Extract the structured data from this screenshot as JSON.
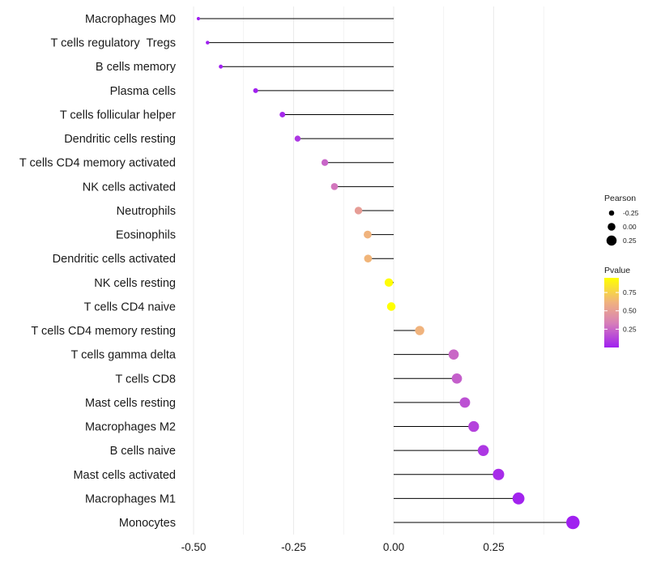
{
  "chart_data": {
    "type": "lollipop",
    "title": "",
    "xlabel": "",
    "ylabel": "",
    "xlim": [
      -0.5,
      0.45
    ],
    "x_ticks": [
      -0.5,
      -0.25,
      0.0,
      0.25
    ],
    "x_tick_labels": [
      "-0.50",
      "-0.25",
      "0.00",
      "0.25"
    ],
    "grid": "vertical",
    "points": [
      {
        "label": "Macrophages M0",
        "pearson": -0.488,
        "pvalue": 1e-06
      },
      {
        "label": "T cells regulatory  Tregs",
        "pearson": -0.465,
        "pvalue": 1e-05
      },
      {
        "label": "B cells memory",
        "pearson": -0.432,
        "pvalue": 0.0001
      },
      {
        "label": "Plasma cells",
        "pearson": -0.345,
        "pvalue": 0.005
      },
      {
        "label": "T cells follicular helper",
        "pearson": -0.278,
        "pvalue": 0.03
      },
      {
        "label": "Dendritic cells resting",
        "pearson": -0.24,
        "pvalue": 0.08
      },
      {
        "label": "T cells CD4 memory activated",
        "pearson": -0.172,
        "pvalue": 0.24
      },
      {
        "label": "NK cells activated",
        "pearson": -0.148,
        "pvalue": 0.3
      },
      {
        "label": "Neutrophils",
        "pearson": -0.088,
        "pvalue": 0.5
      },
      {
        "label": "Eosinophils",
        "pearson": -0.065,
        "pvalue": 0.62
      },
      {
        "label": "Dendritic cells activated",
        "pearson": -0.064,
        "pvalue": 0.63
      },
      {
        "label": "NK cells resting",
        "pearson": -0.012,
        "pvalue": 0.94
      },
      {
        "label": "T cells CD4 naive",
        "pearson": -0.006,
        "pvalue": 0.97
      },
      {
        "label": "T cells CD4 memory resting",
        "pearson": 0.065,
        "pvalue": 0.62
      },
      {
        "label": "T cells gamma delta",
        "pearson": 0.15,
        "pvalue": 0.25
      },
      {
        "label": "T cells CD8",
        "pearson": 0.158,
        "pvalue": 0.22
      },
      {
        "label": "Mast cells resting",
        "pearson": 0.178,
        "pvalue": 0.17
      },
      {
        "label": "Macrophages M2",
        "pearson": 0.2,
        "pvalue": 0.12
      },
      {
        "label": "B cells naive",
        "pearson": 0.224,
        "pvalue": 0.08
      },
      {
        "label": "Mast cells activated",
        "pearson": 0.262,
        "pvalue": 0.04
      },
      {
        "label": "Macrophages M1",
        "pearson": 0.312,
        "pvalue": 0.01
      },
      {
        "label": "Monocytes",
        "pearson": 0.448,
        "pvalue": 0.0001
      }
    ],
    "legend_size": {
      "title": "Pearson",
      "values": [
        -0.25,
        0.0,
        0.25
      ],
      "labels": [
        "-0.25",
        "0.00",
        "0.25"
      ]
    },
    "legend_color": {
      "title": "Pvalue",
      "range": [
        0.0,
        0.95
      ],
      "ticks": [
        0.25,
        0.5,
        0.75
      ],
      "tick_labels": [
        "0.25",
        "0.50",
        "0.75"
      ],
      "low_color": "#a020f0",
      "high_color": "#ffff00"
    },
    "segment_color": "#000000",
    "grid_color": "#ebebeb"
  }
}
